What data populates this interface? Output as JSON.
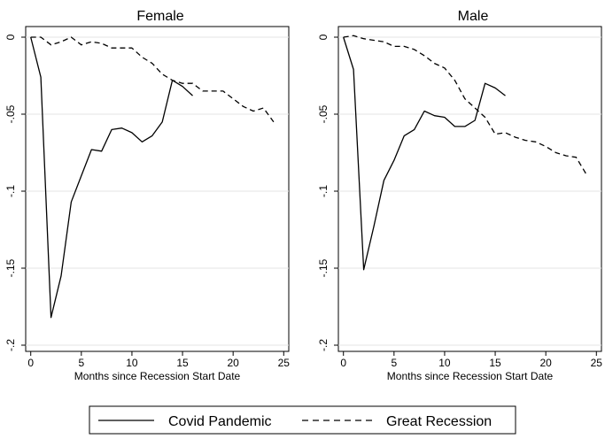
{
  "chart_data": [
    {
      "type": "line",
      "title": "Female",
      "xlabel": "Months since Recession Start Date",
      "ylabel": "",
      "xlim": [
        -0.5,
        25.5
      ],
      "ylim": [
        -0.2,
        0.0
      ],
      "xticks": [
        0,
        5,
        10,
        15,
        20,
        25
      ],
      "xtick_labels": [
        "0",
        "5",
        "10",
        "15",
        "20",
        "25"
      ],
      "yticks": [
        0,
        -0.05,
        -0.1,
        -0.15,
        -0.2
      ],
      "ytick_labels": [
        "0",
        "-.05",
        "-.1",
        "-.15",
        "-.2"
      ],
      "grid": true,
      "series": [
        {
          "name": "Covid Pandemic",
          "style": "solid",
          "x": [
            0,
            1,
            2,
            3,
            4,
            5,
            6,
            7,
            8,
            9,
            10,
            11,
            12,
            13,
            14,
            15,
            16
          ],
          "values": [
            0,
            -0.026,
            -0.182,
            -0.155,
            -0.107,
            -0.09,
            -0.073,
            -0.074,
            -0.06,
            -0.059,
            -0.062,
            -0.068,
            -0.064,
            -0.055,
            -0.028,
            -0.032,
            -0.038
          ]
        },
        {
          "name": "Great Recession",
          "style": "dashed",
          "x": [
            0,
            1,
            2,
            3,
            4,
            5,
            6,
            7,
            8,
            9,
            10,
            11,
            12,
            13,
            14,
            15,
            16,
            17,
            18,
            19,
            20,
            21,
            22,
            23,
            24
          ],
          "values": [
            0,
            0,
            -0.005,
            -0.003,
            0,
            -0.005,
            -0.003,
            -0.004,
            -0.007,
            -0.007,
            -0.007,
            -0.013,
            -0.017,
            -0.024,
            -0.028,
            -0.03,
            -0.03,
            -0.035,
            -0.035,
            -0.035,
            -0.04,
            -0.045,
            -0.048,
            -0.046,
            -0.055
          ]
        }
      ]
    },
    {
      "type": "line",
      "title": "Male",
      "xlabel": "Months since Recession Start Date",
      "ylabel": "",
      "xlim": [
        -0.5,
        25.5
      ],
      "ylim": [
        -0.2,
        0.0
      ],
      "xticks": [
        0,
        5,
        10,
        15,
        20,
        25
      ],
      "xtick_labels": [
        "0",
        "5",
        "10",
        "15",
        "20",
        "25"
      ],
      "yticks": [
        0,
        -0.05,
        -0.1,
        -0.15,
        -0.2
      ],
      "ytick_labels": [
        "0",
        "-.05",
        "-.1",
        "-.15",
        "-.2"
      ],
      "grid": true,
      "series": [
        {
          "name": "Covid Pandemic",
          "style": "solid",
          "x": [
            0,
            1,
            2,
            3,
            4,
            5,
            6,
            7,
            8,
            9,
            10,
            11,
            12,
            13,
            14,
            15,
            16
          ],
          "values": [
            0,
            -0.021,
            -0.151,
            -0.123,
            -0.093,
            -0.08,
            -0.064,
            -0.06,
            -0.048,
            -0.051,
            -0.052,
            -0.058,
            -0.058,
            -0.054,
            -0.03,
            -0.033,
            -0.038
          ]
        },
        {
          "name": "Great Recession",
          "style": "dashed",
          "x": [
            0,
            1,
            2,
            3,
            4,
            5,
            6,
            7,
            8,
            9,
            10,
            11,
            12,
            13,
            14,
            15,
            16,
            17,
            18,
            19,
            20,
            21,
            22,
            23,
            24
          ],
          "values": [
            0,
            0.001,
            -0.001,
            -0.002,
            -0.003,
            -0.006,
            -0.006,
            -0.008,
            -0.012,
            -0.017,
            -0.02,
            -0.028,
            -0.04,
            -0.046,
            -0.052,
            -0.063,
            -0.062,
            -0.065,
            -0.067,
            -0.068,
            -0.071,
            -0.075,
            -0.077,
            -0.078,
            -0.089
          ]
        }
      ]
    }
  ],
  "legend": {
    "placement": "bottom",
    "entries": [
      {
        "label": "Covid Pandemic",
        "style": "solid"
      },
      {
        "label": "Great Recession",
        "style": "dashed"
      }
    ]
  }
}
